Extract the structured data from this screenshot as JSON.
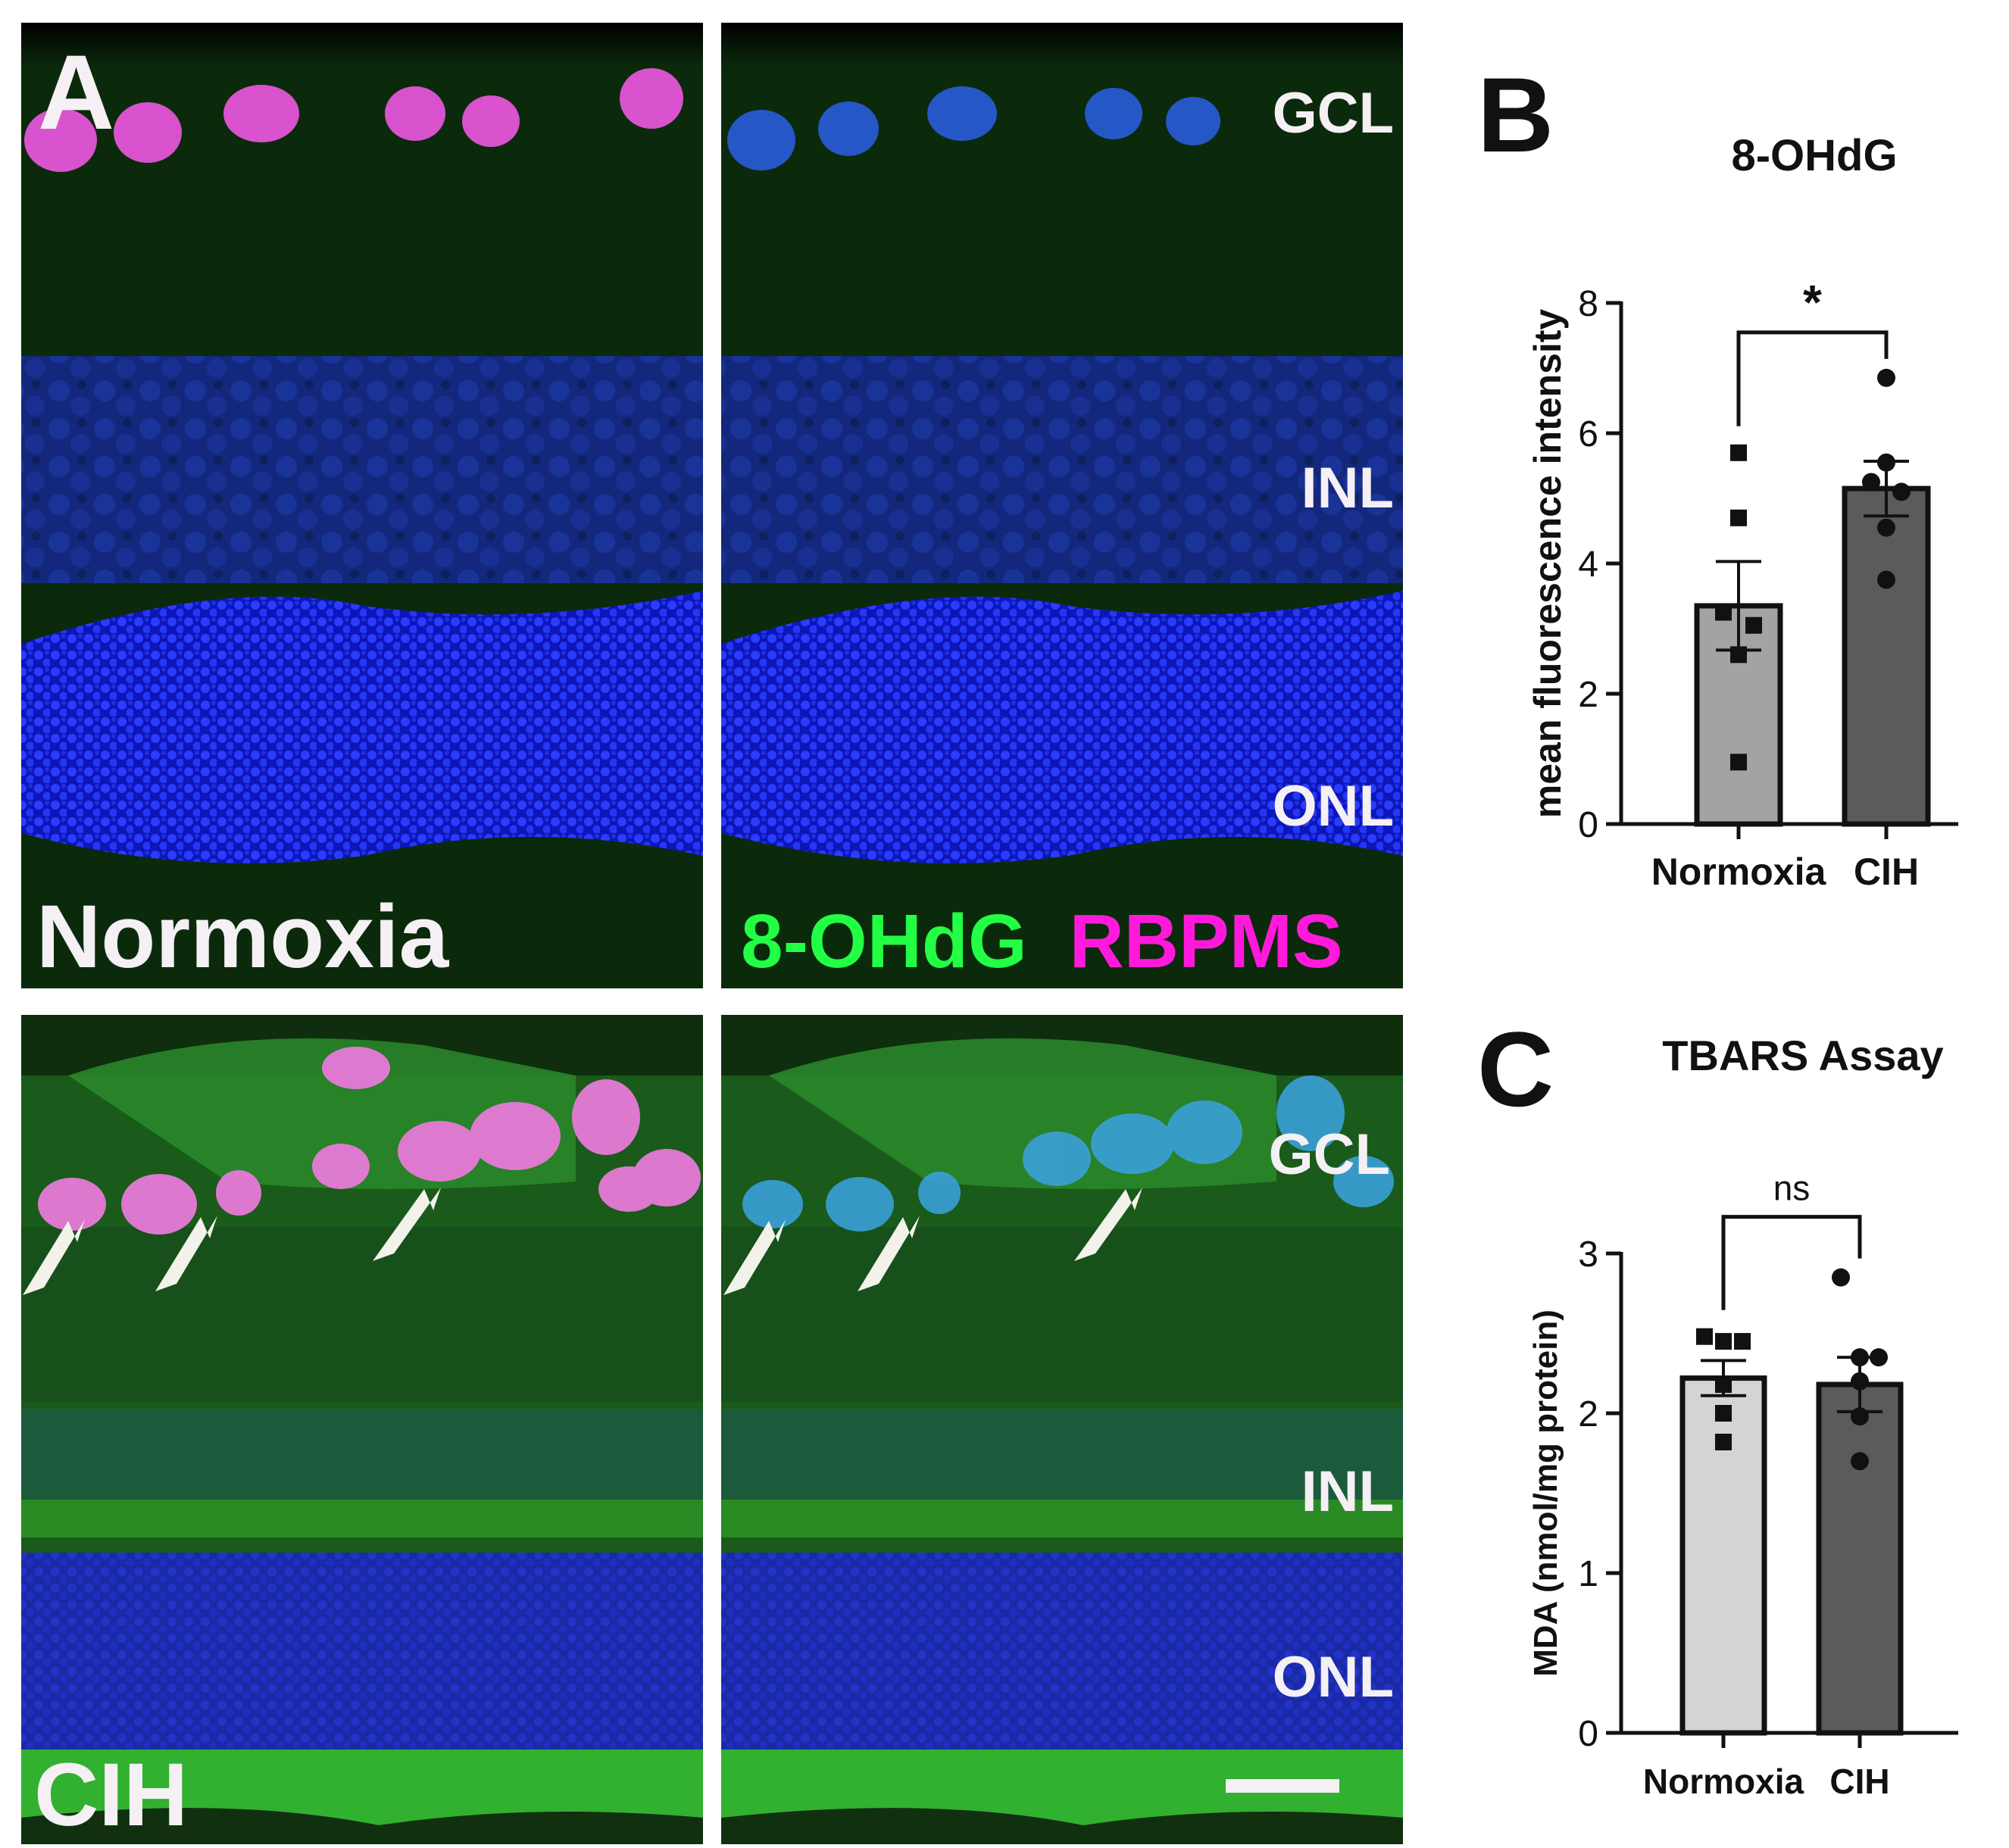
{
  "panel_labels": {
    "a": "A",
    "b": "B",
    "c": "C"
  },
  "micrographs": {
    "condition_labels": {
      "top": "Normoxia",
      "bottom": "CIH"
    },
    "layer_labels": {
      "gcl": "GCL",
      "inl": "INL",
      "onl": "ONL"
    },
    "stain_legend": {
      "green": "8-OHdG",
      "magenta": "RBPMS"
    },
    "colors": {
      "green": "#22ff44",
      "magenta": "#ff1adb",
      "nuclei": "#1a2cff",
      "label_white": "#f4f0f4"
    }
  },
  "chart_data": [
    {
      "type": "bar",
      "title": "8-OHdG",
      "xlabel": "",
      "ylabel": "mean fluorescence intensity",
      "categories": [
        "Normoxia",
        "CIH"
      ],
      "values": [
        3.35,
        5.15
      ],
      "sem": [
        0.68,
        0.42
      ],
      "points": [
        [
          5.7,
          4.7,
          3.25,
          3.05,
          2.6,
          0.95
        ],
        [
          6.85,
          5.55,
          5.25,
          5.1,
          4.55,
          3.75
        ]
      ],
      "ylim": [
        0,
        8
      ],
      "yticks": [
        0,
        2,
        4,
        6,
        8
      ],
      "significance": "*",
      "bar_colors": [
        "#a3a3a3",
        "#5b5b5b"
      ],
      "point_markers": [
        "square",
        "circle"
      ]
    },
    {
      "type": "bar",
      "title": "TBARS Assay",
      "xlabel": "",
      "ylabel": "MDA (nmol/mg protein)",
      "categories": [
        "Normoxia",
        "CIH"
      ],
      "values": [
        2.22,
        2.18
      ],
      "sem": [
        0.11,
        0.17
      ],
      "points": [
        [
          2.48,
          2.45,
          2.45,
          2.18,
          2.0,
          1.82
        ],
        [
          2.85,
          2.35,
          2.35,
          2.2,
          1.98,
          1.7
        ]
      ],
      "ylim": [
        0,
        3
      ],
      "yticks": [
        0,
        1,
        2,
        3
      ],
      "significance": "ns",
      "bar_colors": [
        "#d4d4d4",
        "#5b5b5b"
      ],
      "point_markers": [
        "square",
        "circle"
      ]
    }
  ]
}
